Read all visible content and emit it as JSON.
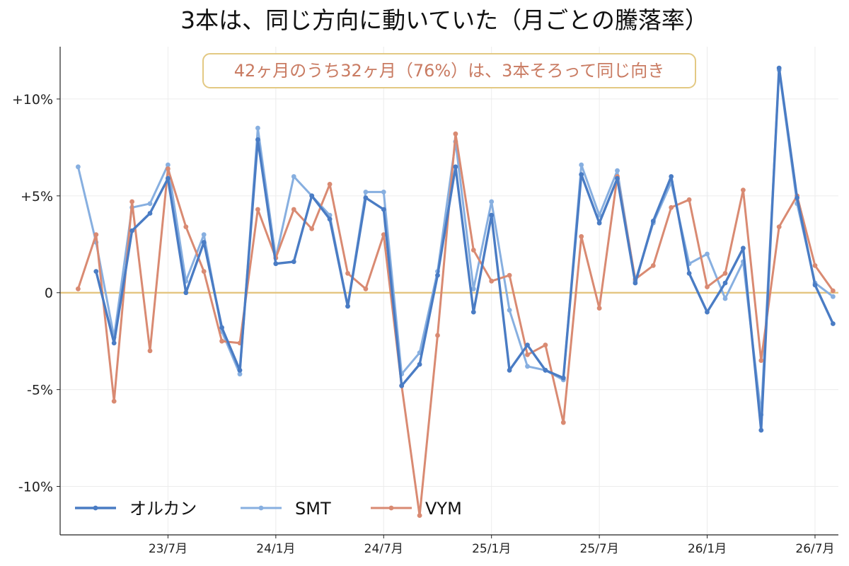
{
  "chart_data": {
    "type": "line",
    "title": "3本は、同じ方向に動いていた（月ごとの騰落率）",
    "annotation": "42ヶ月のうち32ヶ月（76%）は、3本そろって同じ向き",
    "ylim": [
      -12.5,
      12.7
    ],
    "xlim": [
      -1,
      42.3
    ],
    "y_ticks": [
      {
        "value": 10,
        "label": "+10%"
      },
      {
        "value": 5,
        "label": "+5%"
      },
      {
        "value": 0,
        "label": "0"
      },
      {
        "value": -5,
        "label": "-5%"
      },
      {
        "value": -10,
        "label": "-10%"
      }
    ],
    "x_ticks": [
      {
        "index": 5,
        "label": "23/7月"
      },
      {
        "index": 11,
        "label": "24/1月"
      },
      {
        "index": 17,
        "label": "24/7月"
      },
      {
        "index": 23,
        "label": "25/1月"
      },
      {
        "index": 29,
        "label": "25/7月"
      },
      {
        "index": 35,
        "label": "26/1月"
      },
      {
        "index": 41,
        "label": "26/7月"
      }
    ],
    "grid": true,
    "zero_line": true,
    "legend_position": "bottom-left",
    "series": [
      {
        "name": "オルカン",
        "color": "#4a7cc4",
        "start": 1,
        "values": [
          1.1,
          -2.6,
          3.2,
          4.1,
          5.9,
          0.0,
          2.6,
          -1.8,
          -4.0,
          7.9,
          1.5,
          1.6,
          5.0,
          3.8,
          -0.7,
          4.9,
          4.3,
          -4.8,
          -3.7,
          0.9,
          6.5,
          -1.0,
          4.0,
          -4.0,
          -2.7,
          -4.0,
          -4.4,
          6.1,
          3.6,
          5.9,
          0.5,
          3.7,
          6.0,
          1.0,
          -1.0,
          0.5,
          2.3,
          -7.1,
          11.6,
          4.9,
          0.4,
          -1.6
        ]
      },
      {
        "name": "SMT",
        "color": "#87afe0",
        "start": 0,
        "values": [
          6.5,
          2.6,
          -2.3,
          4.4,
          4.6,
          6.6,
          0.6,
          3.0,
          -2.0,
          -4.2,
          8.5,
          1.8,
          6.0,
          5.0,
          4.0,
          -0.7,
          5.2,
          5.2,
          -4.2,
          -3.1,
          1.1,
          7.8,
          0.2,
          4.7,
          -0.9,
          -3.8,
          -4.0,
          -4.5,
          6.6,
          4.0,
          6.3,
          0.6,
          3.6,
          5.7,
          1.5,
          2.0,
          -0.3,
          1.6,
          -6.3,
          11.5,
          4.6,
          0.5,
          -0.2
        ]
      },
      {
        "name": "VYM",
        "color": "#d98a72",
        "start": 0,
        "values": [
          0.2,
          3.0,
          -5.6,
          4.7,
          -3.0,
          6.4,
          3.4,
          1.1,
          -2.5,
          -2.6,
          4.3,
          1.8,
          4.3,
          3.3,
          5.6,
          1.0,
          0.2,
          3.0,
          -4.8,
          -11.5,
          -2.2,
          8.2,
          2.2,
          0.6,
          0.9,
          -3.2,
          -2.7,
          -6.7,
          2.9,
          -0.8,
          6.0,
          0.7,
          1.4,
          4.4,
          4.8,
          0.3,
          1.0,
          5.3,
          -3.5,
          3.4,
          5.0,
          1.4,
          0.1
        ]
      }
    ]
  }
}
